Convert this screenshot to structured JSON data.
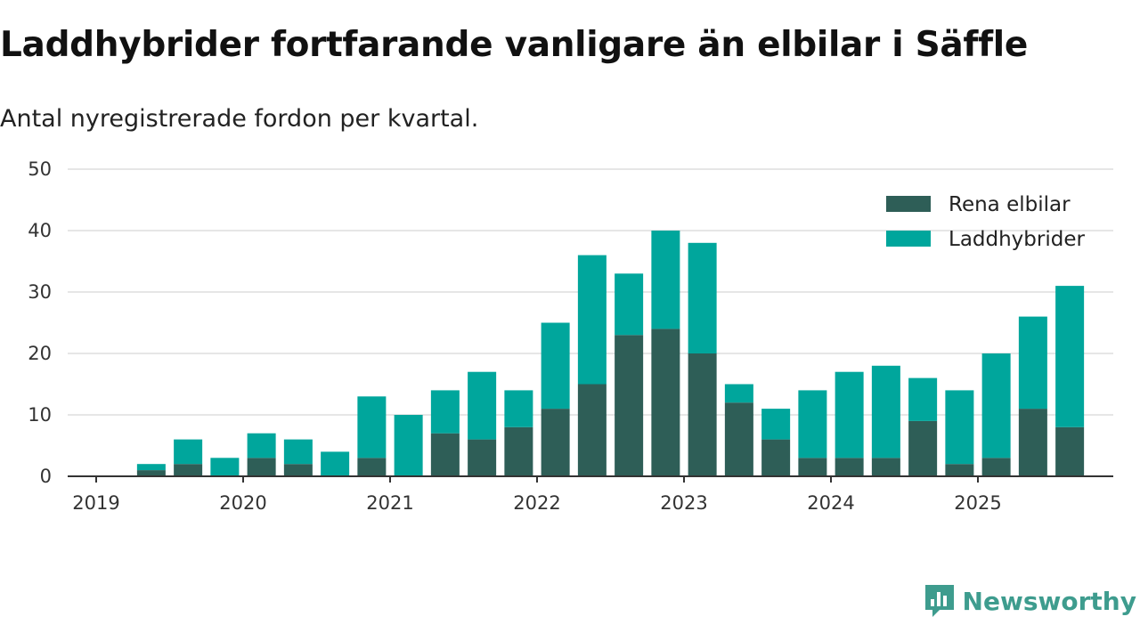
{
  "title": "Laddhybrider fortfarande vanligare än elbilar i Säffle",
  "subtitle": "Antal nyregistrerade fordon per kvartal.",
  "brand": {
    "name": "Newsworthy",
    "icon": "newsworthy-logo-icon"
  },
  "colors": {
    "elbilar": "#2e5e57",
    "laddhybrider": "#00a69c",
    "grid": "#dddddd",
    "axis": "#333333"
  },
  "chart_data": {
    "type": "bar",
    "stacked": true,
    "title": "Laddhybrider fortfarande vanligare än elbilar i Säffle",
    "subtitle": "Antal nyregistrerade fordon per kvartal.",
    "xlabel": "",
    "ylabel": "",
    "ylim": [
      0,
      50
    ],
    "yticks": [
      "0",
      "10",
      "20",
      "30",
      "40",
      "50"
    ],
    "xticks": [
      "2019",
      "2020",
      "2021",
      "2022",
      "2023",
      "2024",
      "2025"
    ],
    "legend_position": "top-right",
    "categories": [
      "2019 Q1",
      "2019 Q2",
      "2019 Q3",
      "2019 Q4",
      "2020 Q1",
      "2020 Q2",
      "2020 Q3",
      "2020 Q4",
      "2021 Q1",
      "2021 Q2",
      "2021 Q3",
      "2021 Q4",
      "2022 Q1",
      "2022 Q2",
      "2022 Q3",
      "2022 Q4",
      "2023 Q1",
      "2023 Q2",
      "2023 Q3",
      "2023 Q4",
      "2024 Q1",
      "2024 Q2",
      "2024 Q3",
      "2024 Q4",
      "2025 Q1",
      "2025 Q2",
      "2025 Q3"
    ],
    "series": [
      {
        "name": "Rena elbilar",
        "values": [
          0,
          1,
          2,
          0,
          3,
          2,
          0,
          3,
          0,
          7,
          6,
          8,
          11,
          15,
          23,
          24,
          20,
          12,
          6,
          3,
          3,
          3,
          9,
          2,
          3,
          11,
          8
        ]
      },
      {
        "name": "Laddhybrider",
        "values": [
          0,
          1,
          4,
          3,
          4,
          4,
          4,
          10,
          10,
          7,
          11,
          6,
          14,
          21,
          10,
          16,
          18,
          3,
          5,
          11,
          14,
          15,
          7,
          12,
          17,
          15,
          23
        ]
      }
    ]
  }
}
